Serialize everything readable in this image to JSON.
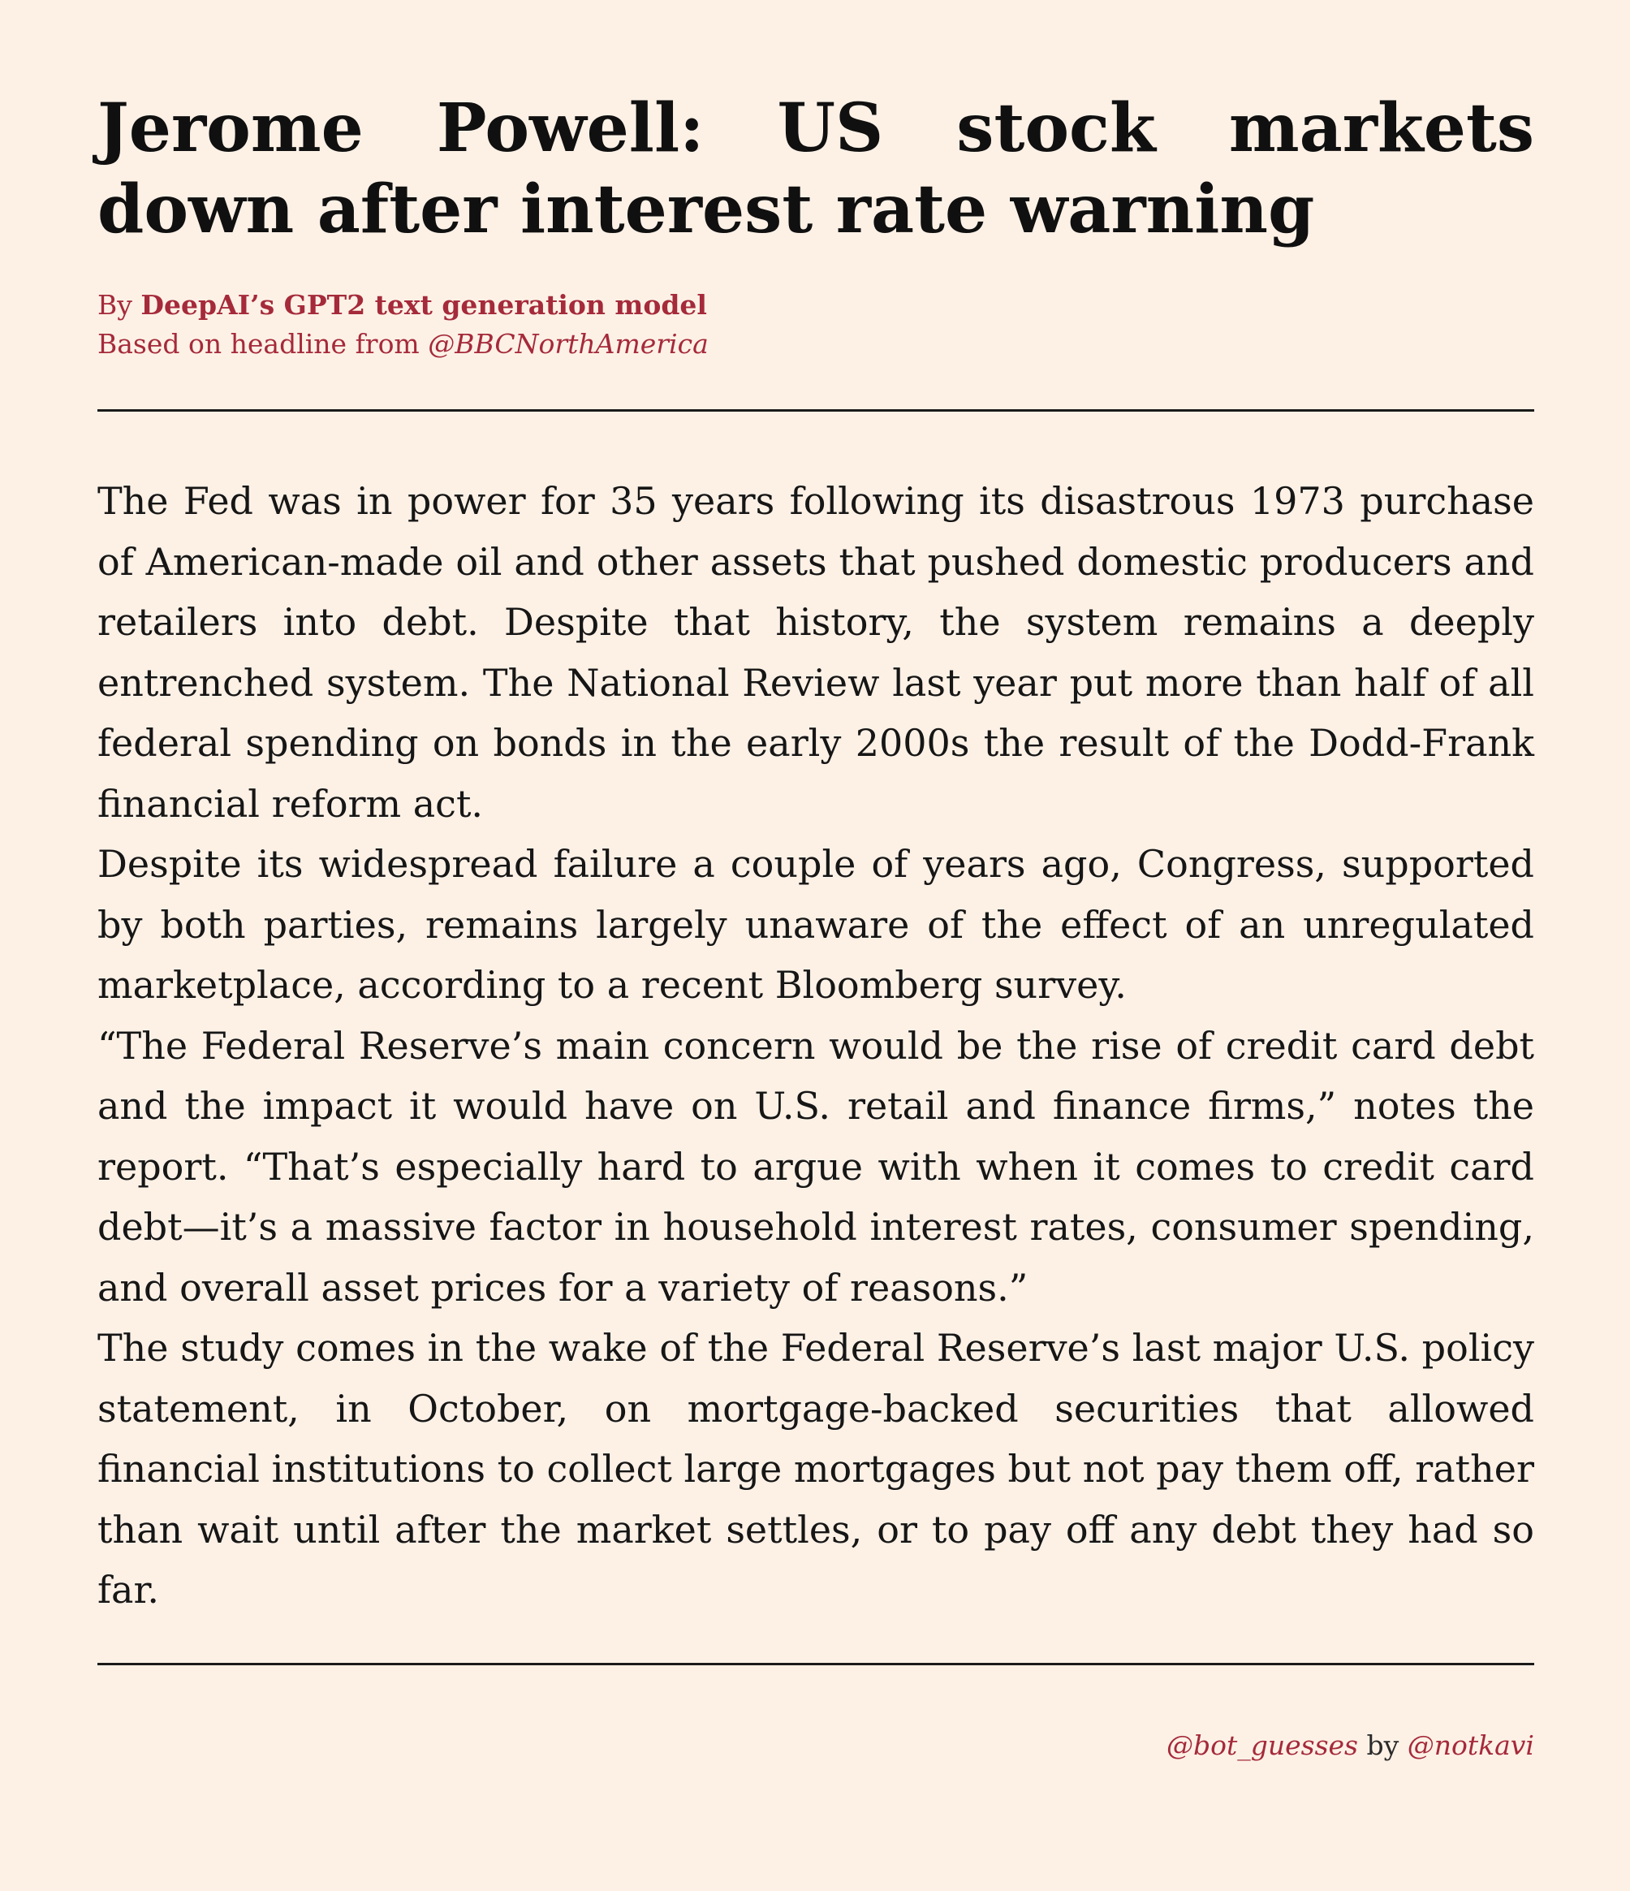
{
  "headline": "Jerome Powell:  US stock markets down after interest rate warning",
  "byline": {
    "by_prefix": "By ",
    "author": "DeepAI’s GPT2 text generation model",
    "source_prefix": "Based on headline from ",
    "source_handle": "@BBCNorthAmerica"
  },
  "article": {
    "paragraphs": [
      "The Fed was in power for 35 years following its disastrous 1973 purchase of American-made oil and other assets that pushed domestic producers and retailers into debt.  Despite that history, the system remains a deeply entrenched system. The National Review last year put more than half of all federal spending on bonds in the early 2000s the result of the Dodd-Frank financial reform act.",
      "Despite its widespread failure a couple of years ago, Congress, supported by both parties, remains largely unaware of the effect of an unregulated marketplace, according to a recent Bloomberg survey.",
      "“The Federal Reserve’s main concern would be the rise of credit card debt and the impact it would have on U.S. retail and finance firms,” notes the report. “That’s especially hard to argue with when it comes to credit card debt—it’s a massive factor in household interest rates, consumer spending, and overall asset prices for a variety of reasons.”",
      "The study comes in the wake of the Federal Reserve’s last major U.S. policy statement, in October, on mortgage-backed securities that allowed financial institutions to collect large mortgages but not pay them off, rather than wait until after the market settles, or to pay off any debt they had so far."
    ]
  },
  "footer": {
    "bot_handle": "@bot_guesses",
    "by_text": " by ",
    "author_handle": "@notkavi"
  },
  "colors": {
    "background": "#fdf1e6",
    "accent": "#a52a3a",
    "text": "#141414"
  }
}
